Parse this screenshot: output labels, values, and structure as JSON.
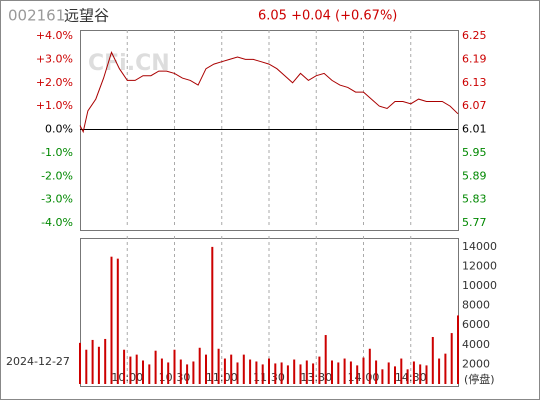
{
  "chart_data": [
    {
      "type": "line",
      "code": "002161",
      "name": "远望谷",
      "quote": "6.05 +0.04 (+0.67%)",
      "watermark": "CFi.CN",
      "x": [
        0,
        2,
        5,
        10,
        15,
        20,
        25,
        30,
        35,
        40,
        45,
        50,
        55,
        60,
        65,
        70,
        75,
        80,
        85,
        90,
        95,
        100,
        105,
        110,
        115,
        120,
        125,
        130,
        135,
        140,
        145,
        150,
        155,
        160,
        165,
        170,
        175,
        180,
        185,
        190,
        195,
        200,
        205,
        210,
        215,
        220,
        225,
        230,
        235,
        240
      ],
      "xlim": [
        0,
        240
      ],
      "series": [
        {
          "color": "#aa0000",
          "values": [
            0.17,
            -0.1,
            0.8,
            1.3,
            2.2,
            3.3,
            2.6,
            2.1,
            2.1,
            2.3,
            2.3,
            2.5,
            2.5,
            2.4,
            2.2,
            2.1,
            1.9,
            2.6,
            2.8,
            2.9,
            3.0,
            3.1,
            3.0,
            3.0,
            2.9,
            2.8,
            2.6,
            2.3,
            2.0,
            2.4,
            2.1,
            2.3,
            2.4,
            2.1,
            1.9,
            1.8,
            1.6,
            1.6,
            1.3,
            1.0,
            0.9,
            1.2,
            1.2,
            1.1,
            1.3,
            1.2,
            1.2,
            1.2,
            1.0,
            0.67
          ]
        }
      ],
      "ylim": [
        -4,
        4
      ],
      "yticks": [
        {
          "value": 4,
          "label": "+4.0%"
        },
        {
          "value": 3,
          "label": "+3.0%"
        },
        {
          "value": 2,
          "label": "+2.0%"
        },
        {
          "value": 1,
          "label": "+1.0%"
        },
        {
          "value": 0,
          "label": "0.0%"
        },
        {
          "value": -1,
          "label": "-1.0%"
        },
        {
          "value": -2,
          "label": "-2.0%"
        },
        {
          "value": -3,
          "label": "-3.0%"
        },
        {
          "value": -4,
          "label": "-4.0%"
        }
      ],
      "y2lim": [
        5.77,
        6.25
      ],
      "y2ticks": [
        6.25,
        6.19,
        6.13,
        6.07,
        6.01,
        5.95,
        5.89,
        5.83,
        5.77
      ]
    },
    {
      "type": "bar",
      "date": "2024-12-27",
      "annotation": "(停盘)",
      "color": "#cc0000",
      "x": [
        0,
        4,
        8,
        12,
        16,
        20,
        24,
        28,
        32,
        36,
        40,
        44,
        48,
        52,
        56,
        60,
        64,
        68,
        72,
        76,
        80,
        84,
        88,
        92,
        96,
        100,
        104,
        108,
        112,
        116,
        120,
        124,
        128,
        132,
        136,
        140,
        144,
        148,
        152,
        156,
        160,
        164,
        168,
        172,
        176,
        180,
        184,
        188,
        192,
        196,
        200,
        204,
        208,
        212,
        216,
        220,
        224,
        228,
        232,
        236,
        240
      ],
      "values": [
        4200,
        3500,
        4500,
        3800,
        4600,
        13000,
        12800,
        3500,
        2800,
        3000,
        2400,
        2000,
        3400,
        2600,
        2200,
        3500,
        2500,
        2000,
        2300,
        3700,
        3000,
        14000,
        3600,
        2600,
        3000,
        2200,
        3000,
        2500,
        2300,
        2000,
        2600,
        2100,
        2200,
        1900,
        2500,
        2000,
        2400,
        2100,
        2800,
        5000,
        2400,
        2200,
        2600,
        2300,
        1900,
        2700,
        3600,
        2400,
        1500,
        2200,
        1800,
        2600,
        1500,
        2300,
        2000,
        1900,
        4800,
        2600,
        3100,
        5200,
        7000
      ],
      "xlim": [
        0,
        240
      ],
      "xticks": [
        {
          "value": 30,
          "label": "10:00"
        },
        {
          "value": 60,
          "label": "10:30"
        },
        {
          "value": 90,
          "label": "11:00"
        },
        {
          "value": 120,
          "label": "11:30"
        },
        {
          "value": 150,
          "label": "13:30"
        },
        {
          "value": 180,
          "label": "14:00"
        },
        {
          "value": 210,
          "label": "14:30"
        }
      ],
      "ylim": [
        0,
        14500
      ],
      "yticks": [
        14000,
        12000,
        10000,
        8000,
        6000,
        4000,
        2000
      ]
    }
  ]
}
